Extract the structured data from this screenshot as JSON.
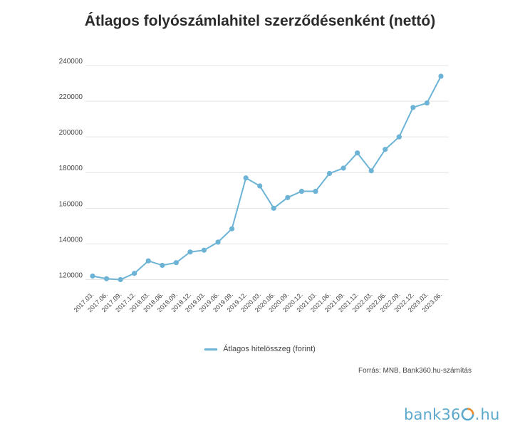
{
  "colors": {
    "series": "#6cb3d6",
    "logo": "#5ba8cc"
  },
  "chart_data": {
    "type": "line",
    "title": "Átlagos folyószámlahitel szerződésenként (nettó)",
    "xlabel": "",
    "ylabel": "",
    "ylim": [
      115000,
      240000
    ],
    "yticks": [
      120000,
      140000,
      160000,
      180000,
      200000,
      220000,
      240000
    ],
    "grid": true,
    "legend_position": "bottom",
    "categories": [
      "2017.03.",
      "2017.06.",
      "2017.09.",
      "2017.12.",
      "2018.03.",
      "2018.06.",
      "2018.09.",
      "2018.12.",
      "2019.03.",
      "2019.06.",
      "2019.09.",
      "2019.12.",
      "2020.03.",
      "2020.06.",
      "2020.09.",
      "2020.12.",
      "2021.03.",
      "2021.06.",
      "2021.09.",
      "2021.12.",
      "2022.03.",
      "2022.06.",
      "2022.09.",
      "2022.12.",
      "2023.03.",
      "2023.06."
    ],
    "series": [
      {
        "name": "Átlagos hitelösszeg (forint)",
        "values": [
          122000,
          120500,
          120000,
          123500,
          130500,
          128000,
          129500,
          135500,
          136500,
          141000,
          148500,
          177000,
          172500,
          160000,
          166000,
          169500,
          169500,
          179500,
          182500,
          191000,
          181000,
          193000,
          200000,
          216500,
          219000,
          234000
        ]
      }
    ]
  },
  "source": "Forrás: MNB, Bank360.hu-számítás",
  "logo": {
    "prefix": "bank36",
    "suffix": "hu"
  }
}
